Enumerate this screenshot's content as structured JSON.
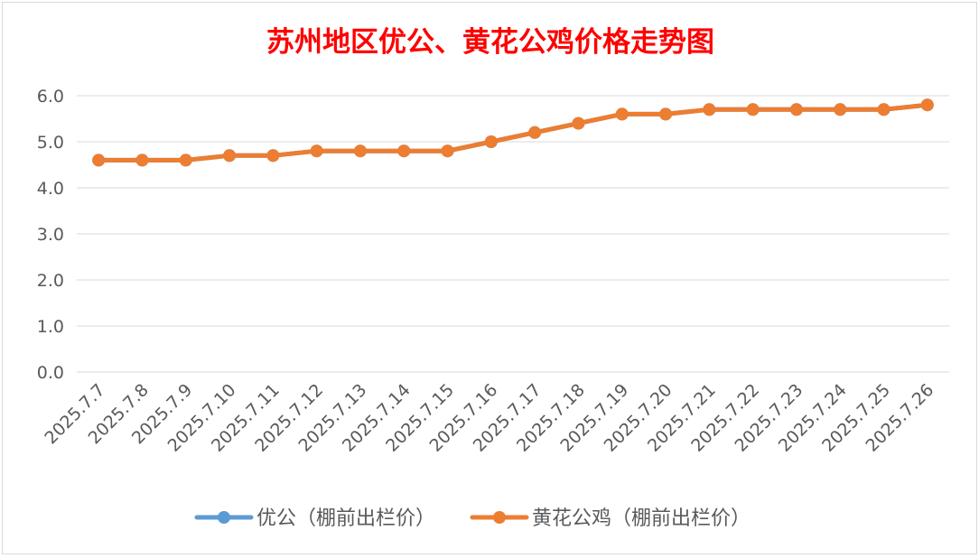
{
  "chart_data": {
    "type": "line",
    "title": "苏州地区优公、黄花公鸡价格走势图",
    "x": [
      "2025.7.7",
      "2025.7.8",
      "2025.7.9",
      "2025.7.10",
      "2025.7.11",
      "2025.7.12",
      "2025.7.13",
      "2025.7.14",
      "2025.7.15",
      "2025.7.16",
      "2025.7.17",
      "2025.7.18",
      "2025.7.19",
      "2025.7.20",
      "2025.7.21",
      "2025.7.22",
      "2025.7.23",
      "2025.7.24",
      "2025.7.25",
      "2025.7.26"
    ],
    "yticks": [
      "0.0",
      "1.0",
      "2.0",
      "3.0",
      "4.0",
      "5.0",
      "6.0"
    ],
    "ylim": [
      0,
      6
    ],
    "grid": true,
    "legend_position": "bottom",
    "series": [
      {
        "name": "优公（棚前出栏价）",
        "color": "#5B9BD5",
        "values": [
          4.6,
          4.6,
          4.6,
          4.7,
          4.7,
          4.8,
          4.8,
          4.8,
          4.8,
          5.0,
          5.2,
          5.4,
          5.6,
          5.6,
          5.7,
          5.7,
          5.7,
          5.7,
          5.7,
          5.8
        ]
      },
      {
        "name": "黄花公鸡（棚前出栏价）",
        "color": "#ED7D31",
        "values": [
          4.6,
          4.6,
          4.6,
          4.7,
          4.7,
          4.8,
          4.8,
          4.8,
          4.8,
          5.0,
          5.2,
          5.4,
          5.6,
          5.6,
          5.7,
          5.7,
          5.7,
          5.7,
          5.7,
          5.8
        ]
      }
    ]
  }
}
